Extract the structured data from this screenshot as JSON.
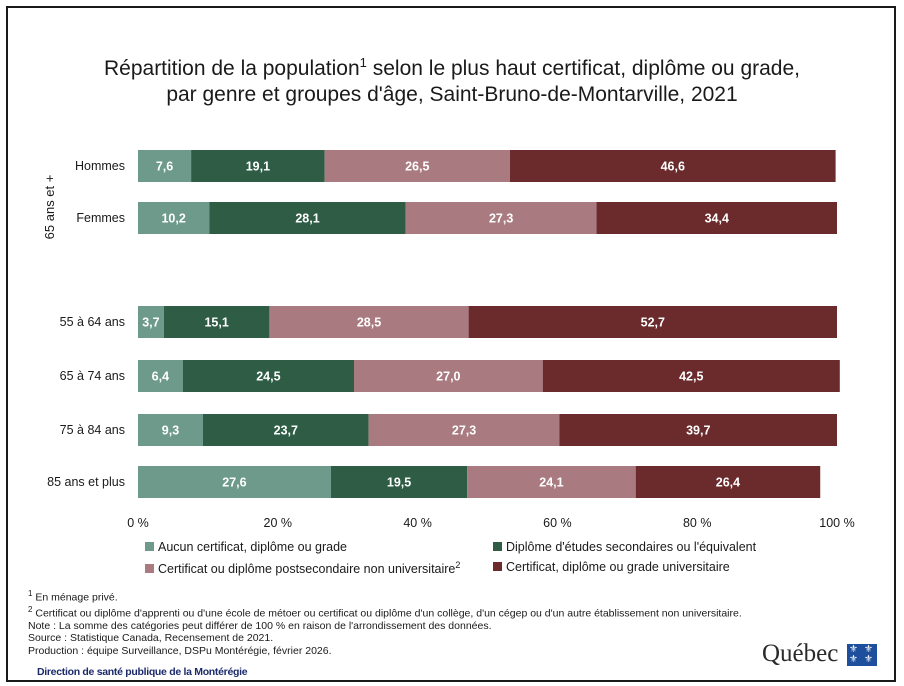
{
  "title": {
    "line1_main": "Répartition de la population",
    "line1_sup": "1",
    "line1_rest": " selon le plus haut certificat, diplôme ou grade,",
    "line2": "par genre et groupes d'âge, Saint-Bruno-de-Montarville, 2021"
  },
  "group_label": "65 ans et +",
  "chart_data": {
    "type": "bar",
    "orientation": "horizontal",
    "stacked": "percent",
    "categories": [
      "Hommes",
      "Femmes",
      "55 à 64 ans",
      "65 à 74 ans",
      "75 à 84 ans",
      "85 ans et plus"
    ],
    "series": [
      {
        "name": "Aucun certificat, diplôme ou grade",
        "color": "#6e9a8c",
        "values": [
          7.6,
          10.2,
          3.7,
          6.4,
          9.3,
          27.6
        ],
        "labels": [
          "7,6",
          "10,2",
          "3,7",
          "6,4",
          "9,3",
          "27,6"
        ]
      },
      {
        "name": "Diplôme d'études secondaires ou l'équivalent",
        "color": "#2e5c45",
        "values": [
          19.1,
          28.1,
          15.1,
          24.5,
          23.7,
          19.5
        ],
        "labels": [
          "19,1",
          "28,1",
          "15,1",
          "24,5",
          "23,7",
          "19,5"
        ]
      },
      {
        "name": "Certificat ou diplôme postsecondaire non universitaire",
        "color": "#a97b80",
        "values": [
          26.5,
          27.3,
          28.5,
          27.0,
          27.3,
          24.1
        ],
        "labels": [
          "26,5",
          "27,3",
          "28,5",
          "27,0",
          "27,3",
          "24,1"
        ]
      },
      {
        "name": "Certificat, diplôme ou grade universitaire",
        "color": "#6b2a2c",
        "values": [
          46.6,
          34.4,
          52.7,
          42.5,
          39.7,
          26.4
        ],
        "labels": [
          "46,6",
          "34,4",
          "52,7",
          "42,5",
          "39,7",
          "26,4"
        ]
      }
    ],
    "xlim": [
      0,
      100
    ],
    "xticks": [
      "0 %",
      "20 %",
      "40 %",
      "60 %",
      "80 %",
      "100 %"
    ],
    "legend_placement": "bottom",
    "grid": false
  },
  "legend": [
    {
      "label": "Aucun certificat, diplôme ou grade",
      "sup": "",
      "color": "#6e9a8c"
    },
    {
      "label": "Diplôme d'études secondaires ou l'équivalent",
      "sup": "",
      "color": "#2e5c45"
    },
    {
      "label": "Certificat ou diplôme postsecondaire non universitaire",
      "sup": "2",
      "color": "#a97b80"
    },
    {
      "label": "Certificat, diplôme ou grade universitaire",
      "sup": "",
      "color": "#6b2a2c"
    }
  ],
  "notes": {
    "n1_sup": "1",
    "n1": " En ménage privé.",
    "n2_sup": "2",
    "n2": " Certificat ou diplôme d'apprenti ou d'une école de métoer ou certificat ou diplôme d'un collège, d'un cégep ou d'un autre établissement non universitaire.",
    "n3": "Note : La somme des catégories peut différer de 100 % en raison de l'arrondissement des données.",
    "n4": "Source : Statistique Canada, Recensement de 2021.",
    "n5": "Production : équipe Surveillance, DSPu Montérégie, février 2026."
  },
  "dsp_label": "Direction de santé publique de la Montérégie",
  "quebec_logo": "Québec"
}
